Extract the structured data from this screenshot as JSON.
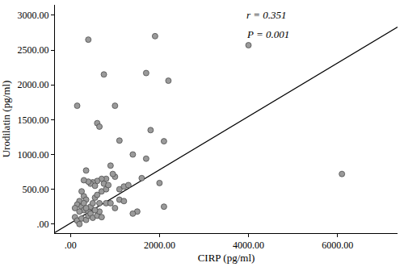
{
  "chart_data": {
    "type": "scatter",
    "x_label": "CIRP (pg/ml)",
    "y_label": "Urodilatin (pg/ml)",
    "annotations": [
      "r = 0.351",
      "P = 0.001"
    ],
    "color": "#9a9a9a",
    "marker": "circle",
    "grid": false,
    "x": [
      150,
      400,
      750,
      1000,
      1700,
      1900,
      2200,
      4000,
      6100,
      600,
      650,
      1800,
      2100,
      1100,
      1400,
      1700,
      2000,
      1600,
      2100,
      1500,
      1400,
      1100,
      1200,
      900,
      1000,
      950,
      800,
      700,
      600,
      500,
      450,
      400,
      300,
      550,
      350,
      250,
      300,
      350,
      200,
      150,
      250,
      300,
      400,
      450,
      500,
      550,
      600,
      650,
      700,
      750,
      800,
      850,
      300,
      200,
      100,
      150,
      250,
      350,
      400,
      450,
      500,
      600,
      650,
      700,
      800,
      900,
      1000,
      1100,
      1200,
      1300,
      200,
      100,
      350,
      550
    ],
    "values": [
      1700,
      2650,
      2150,
      1700,
      2170,
      2700,
      2060,
      2570,
      720,
      1450,
      1400,
      1350,
      1190,
      1200,
      1000,
      940,
      590,
      660,
      250,
      180,
      150,
      350,
      330,
      840,
      680,
      720,
      650,
      650,
      620,
      600,
      580,
      610,
      630,
      550,
      770,
      470,
      400,
      350,
      330,
      280,
      250,
      200,
      180,
      250,
      300,
      380,
      420,
      300,
      470,
      580,
      500,
      560,
      300,
      180,
      100,
      50,
      80,
      60,
      120,
      150,
      90,
      120,
      180,
      100,
      300,
      300,
      230,
      500,
      540,
      560,
      0,
      230,
      230,
      200
    ],
    "fit_line": {
      "x": [
        -350,
        7350
      ],
      "y": [
        -120,
        2830
      ]
    },
    "xlim": [
      -350,
      7350
    ],
    "ylim": [
      -130,
      3150
    ],
    "xticks": [
      {
        "value": 0,
        "label": ".00"
      },
      {
        "value": 2000,
        "label": "2000.00"
      },
      {
        "value": 4000,
        "label": "4000.00"
      },
      {
        "value": 6000,
        "label": "6000.00"
      }
    ],
    "yticks": [
      {
        "value": 0,
        "label": ".00"
      },
      {
        "value": 500,
        "label": "500.00"
      },
      {
        "value": 1000,
        "label": "1000.00"
      },
      {
        "value": 1500,
        "label": "1500.00"
      },
      {
        "value": 2000,
        "label": "2000.00"
      },
      {
        "value": 2500,
        "label": "2500.00"
      },
      {
        "value": 3000,
        "label": "3000.00"
      }
    ]
  }
}
